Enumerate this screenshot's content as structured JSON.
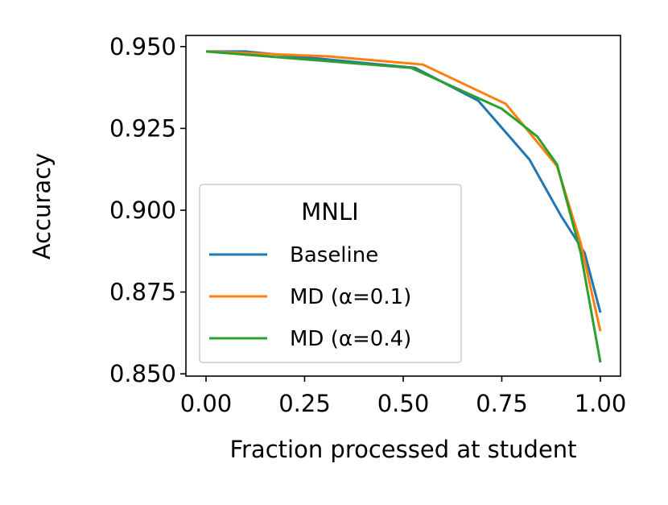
{
  "chart_data": {
    "type": "line",
    "x_label": "Fraction processed at student",
    "y_label": "Accuracy",
    "xlim": [
      -0.051,
      1.051
    ],
    "ylim": [
      0.8493,
      0.9534
    ],
    "xticks": [
      {
        "value": 0,
        "label": "0.00"
      },
      0.25,
      {
        "value": 0.5,
        "label": "0.50"
      },
      0.75,
      {
        "value": 1,
        "label": "1.00"
      }
    ],
    "yticks": [
      {
        "value": 0.85,
        "label": "0.850"
      },
      0.875,
      {
        "value": 0.9,
        "label": "0.900"
      },
      0.925,
      {
        "value": 0.95,
        "label": "0.950"
      }
    ],
    "legend_title": "MNLI",
    "legend_position": "lower left",
    "series": [
      {
        "name": "Baseline",
        "color": "#1f77b4",
        "x": [
          0,
          0.1,
          0.53,
          0.69,
          0.82,
          0.9,
          0.96,
          1.0
        ],
        "values": [
          0.9485,
          0.9485,
          0.9435,
          0.9335,
          0.9155,
          0.8983,
          0.887,
          0.8687
        ]
      },
      {
        "name": "MD (α=0.1)",
        "color": "#ff7f0e",
        "x": [
          0,
          0.31,
          0.55,
          0.76,
          0.89,
          0.95,
          1.0
        ],
        "values": [
          0.9485,
          0.947,
          0.9445,
          0.9325,
          0.9135,
          0.89,
          0.863
        ]
      },
      {
        "name": "MD (α=0.4)",
        "color": "#2ca02c",
        "x": [
          0,
          0.52,
          0.75,
          0.84,
          0.89,
          0.95,
          1.0
        ],
        "values": [
          0.9485,
          0.9435,
          0.931,
          0.9225,
          0.914,
          0.887,
          0.8535
        ]
      }
    ]
  }
}
